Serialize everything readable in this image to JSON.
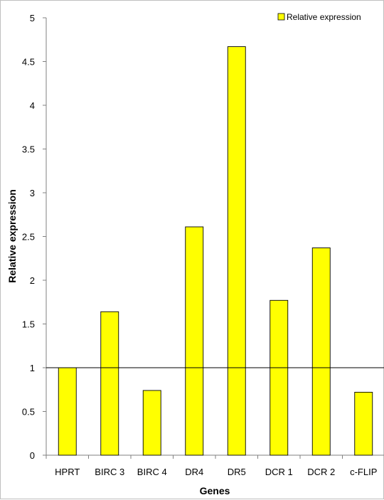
{
  "chart_data": {
    "type": "bar",
    "categories": [
      "HPRT",
      "BIRC 3",
      "BIRC 4",
      "DR4",
      "DR5",
      "DCR 1",
      "DCR 2",
      "c-FLIP"
    ],
    "series": [
      {
        "name": "Relative expression",
        "values": [
          1.0,
          1.64,
          0.74,
          2.61,
          4.67,
          1.77,
          2.37,
          0.72
        ],
        "color": "#ffff00"
      }
    ],
    "xlabel": "Genes",
    "ylabel": "Relative expression",
    "ylim": [
      0,
      5
    ],
    "yticks": [
      "0",
      "0.5",
      "1",
      "1.5",
      "2",
      "2.5",
      "3",
      "3.5",
      "4",
      "4.5",
      "5"
    ],
    "reference_line": 1,
    "legend_position": "top-right",
    "grid": false
  }
}
